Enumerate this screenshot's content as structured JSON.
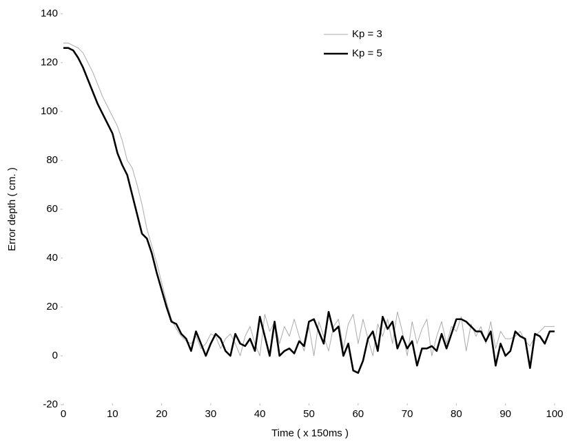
{
  "chart_data": {
    "type": "line",
    "x_label": "Time ( x 150ms )",
    "y_label": "Error depth ( cm. )",
    "x": [
      0,
      1,
      2,
      3,
      4,
      5,
      6,
      7,
      8,
      9,
      10,
      11,
      12,
      13,
      14,
      15,
      16,
      17,
      18,
      19,
      20,
      21,
      22,
      23,
      24,
      25,
      26,
      27,
      28,
      29,
      30,
      31,
      32,
      33,
      34,
      35,
      36,
      37,
      38,
      39,
      40,
      41,
      42,
      43,
      44,
      45,
      46,
      47,
      48,
      49,
      50,
      51,
      52,
      53,
      54,
      55,
      56,
      57,
      58,
      59,
      60,
      61,
      62,
      63,
      64,
      65,
      66,
      67,
      68,
      69,
      70,
      71,
      72,
      73,
      74,
      75,
      76,
      77,
      78,
      79,
      80,
      81,
      82,
      83,
      84,
      85,
      86,
      87,
      88,
      89,
      90,
      91,
      92,
      93,
      94,
      95,
      96,
      97,
      98,
      99,
      100
    ],
    "series": [
      {
        "name": "Kp = 3",
        "color": "#aaaaaa",
        "width": 1,
        "values": [
          128,
          128,
          127,
          126,
          124,
          120,
          116,
          111,
          106,
          102,
          98,
          94,
          88,
          80,
          77,
          70,
          62,
          52,
          45,
          38,
          30,
          22,
          15,
          11,
          8,
          6,
          5,
          8,
          3,
          5,
          9,
          8,
          3,
          7,
          9,
          5,
          0,
          8,
          12,
          5,
          0,
          17,
          10,
          14,
          5,
          12,
          8,
          15,
          8,
          2,
          12,
          0,
          14,
          8,
          2,
          12,
          15,
          3,
          13,
          17,
          5,
          15,
          7,
          0,
          13,
          8,
          15,
          5,
          18,
          10,
          0,
          14,
          5,
          11,
          15,
          0,
          8,
          14,
          5,
          12,
          10,
          16,
          2,
          13,
          8,
          12,
          5,
          14,
          3,
          10,
          7,
          7,
          8,
          10,
          6,
          4,
          8,
          10,
          12,
          12,
          12
        ]
      },
      {
        "name": "Kp = 5",
        "color": "#000000",
        "width": 2.6,
        "values": [
          126,
          126,
          125,
          122,
          118,
          113,
          108,
          103,
          99,
          95,
          91,
          83,
          78,
          74,
          66,
          58,
          50,
          48,
          42,
          34,
          27,
          20,
          14,
          13,
          9,
          7,
          2,
          10,
          5,
          0,
          5,
          9,
          7,
          2,
          0,
          9,
          5,
          4,
          7,
          2,
          16,
          8,
          0,
          14,
          0,
          2,
          3,
          1,
          6,
          4,
          14,
          15,
          10,
          5,
          18,
          10,
          12,
          0,
          5,
          -6,
          -7,
          -2,
          7,
          10,
          2,
          16,
          11,
          14,
          3,
          8,
          3,
          6,
          -4,
          3,
          3,
          4,
          2,
          9,
          3,
          9,
          15,
          15,
          14,
          12,
          10,
          10,
          6,
          10,
          -4,
          5,
          0,
          2,
          10,
          8,
          7,
          -5,
          9,
          8,
          5,
          10,
          10
        ]
      }
    ],
    "xlim": [
      0,
      100
    ],
    "xticks": [
      0,
      10,
      20,
      30,
      40,
      50,
      60,
      70,
      80,
      90,
      100
    ],
    "ylim": [
      -20,
      140
    ],
    "yticks": [
      -20,
      0,
      20,
      40,
      60,
      80,
      100,
      120,
      140
    ],
    "grid": false,
    "legend": "upper-right"
  }
}
